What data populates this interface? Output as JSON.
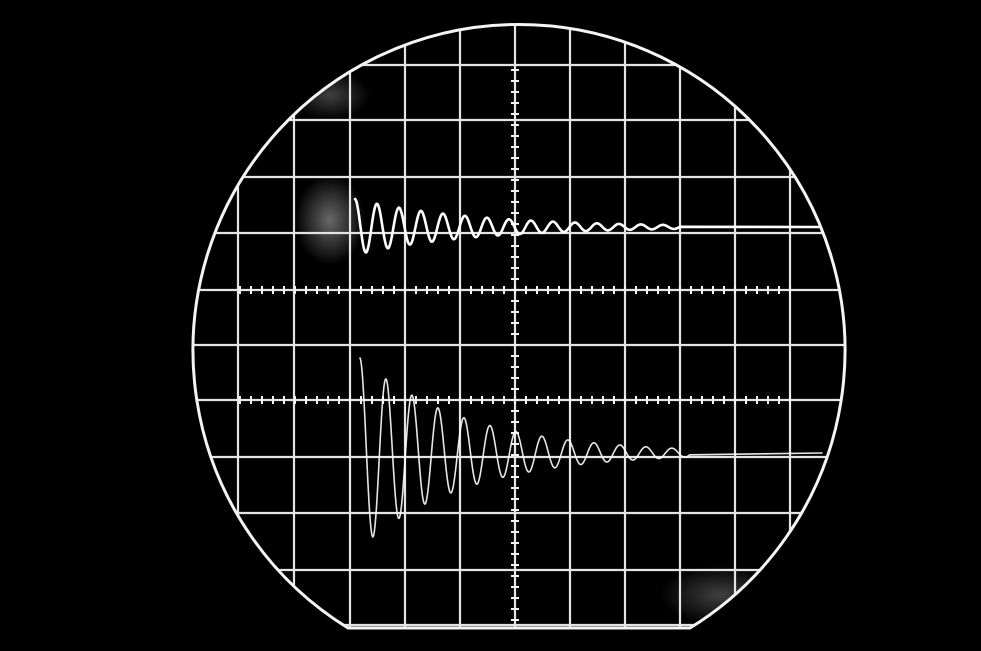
{
  "photo": {
    "subject": "oscilloscope-screen",
    "colors": {
      "background": "#000000",
      "graticule": "#e4e4e4",
      "trace": "#ffffff",
      "bezel": "#f4f4f4"
    },
    "traces": [
      {
        "name": "upper-trace",
        "shape": "damped-oscillation"
      },
      {
        "name": "lower-trace",
        "shape": "damped-oscillation"
      }
    ]
  }
}
